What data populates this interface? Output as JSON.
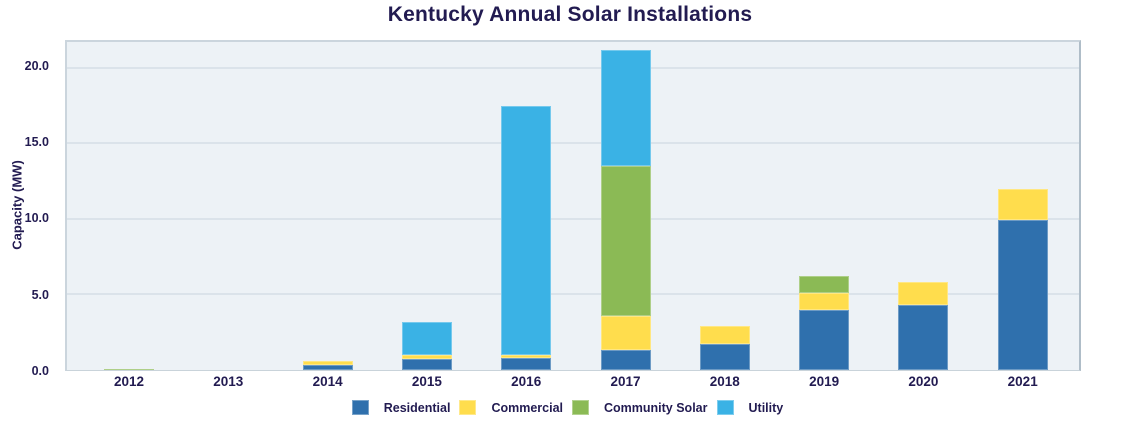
{
  "title": "Kentucky Annual Solar Installations",
  "colors": {
    "text": "#221B51",
    "plot_background": "#EDF2F6",
    "gridline": "#DBE3EA",
    "plot_border": "#CBD5DD",
    "residential": "#2F70AD",
    "commercial": "#FFDD4D",
    "community_solar": "#8BBA55",
    "utility": "#3AB2E5"
  },
  "chart_data": {
    "type": "bar",
    "stacked": true,
    "title": "Kentucky Annual Solar Installations",
    "xlabel": "",
    "ylabel": "Capacity (MW)",
    "categories": [
      "2012",
      "2013",
      "2014",
      "2015",
      "2016",
      "2017",
      "2018",
      "2019",
      "2020",
      "2021"
    ],
    "series": [
      {
        "name": "Residential",
        "color": "#2F70AD",
        "values": [
          0,
          0,
          0.3,
          0.7,
          0.8,
          1.3,
          1.7,
          4.0,
          4.3,
          9.9
        ]
      },
      {
        "name": "Commercial",
        "color": "#FFDD4D",
        "values": [
          0,
          0,
          0.3,
          0.3,
          0.2,
          2.3,
          1.2,
          1.1,
          1.5,
          2.1
        ]
      },
      {
        "name": "Community Solar",
        "color": "#8BBA55",
        "values": [
          0.1,
          0,
          0,
          0,
          0,
          9.9,
          0,
          1.1,
          0,
          0
        ]
      },
      {
        "name": "Utility",
        "color": "#3AB2E5",
        "values": [
          0,
          0,
          0,
          2.2,
          16.5,
          7.7,
          0,
          0,
          0,
          0
        ]
      }
    ],
    "totals": [
      0.1,
      0,
      0.6,
      3.2,
      17.5,
      21.2,
      2.9,
      6.2,
      5.8,
      12.0
    ],
    "ylim": [
      0,
      21.7
    ],
    "yticks": [
      0,
      5,
      10,
      15,
      20
    ],
    "ytick_labels": [
      "0.0",
      "5.0",
      "10.0",
      "15.0",
      "20.0"
    ],
    "grid": true,
    "legend_position": "bottom"
  }
}
